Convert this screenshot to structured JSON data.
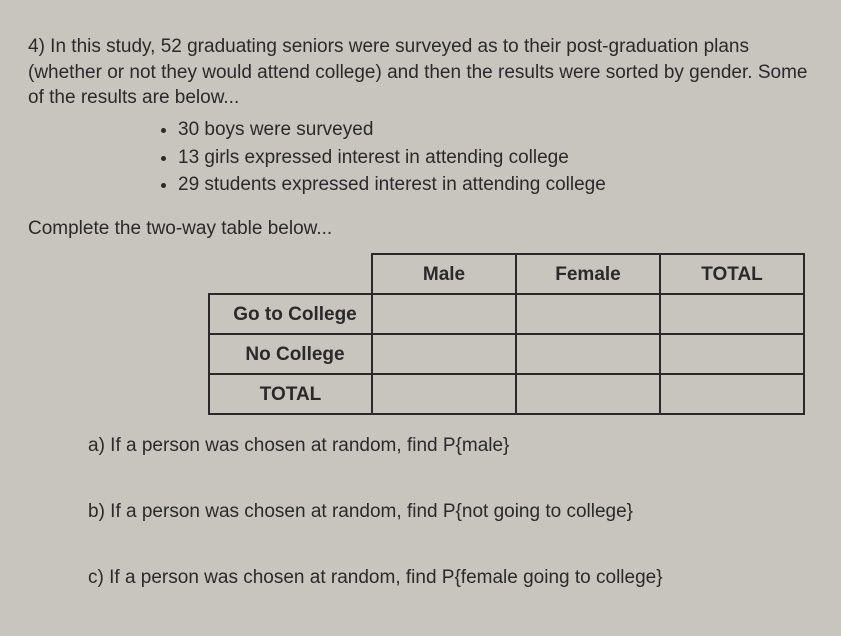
{
  "intro": "4) In this study, 52 graduating seniors were surveyed as to their post-graduation plans (whether or not they would attend college) and then the results were sorted by gender. Some of the results are below...",
  "given": [
    "30 boys were surveyed",
    "13 girls expressed interest in attending college",
    "29 students expressed interest in attending college"
  ],
  "instruction": "Complete the two-way table below...",
  "table": {
    "col_headers": [
      "Male",
      "Female",
      "TOTAL"
    ],
    "row_headers": [
      "Go to College",
      "No College",
      "TOTAL"
    ],
    "cells": [
      [
        "",
        "",
        ""
      ],
      [
        "",
        "",
        ""
      ],
      [
        "",
        "",
        ""
      ]
    ]
  },
  "questions": {
    "a": "a) If a person was chosen at random, find P{male}",
    "b": "b) If a person was chosen at random, find P{not going to college}",
    "c": "c) If a person was chosen at random, find P{female going to college}"
  },
  "colors": {
    "background": "#c8c5be",
    "text": "#2a2a2a",
    "border": "#2a2a2a"
  },
  "typography": {
    "body_fontsize_pt": 14,
    "font_family": "Arial"
  }
}
